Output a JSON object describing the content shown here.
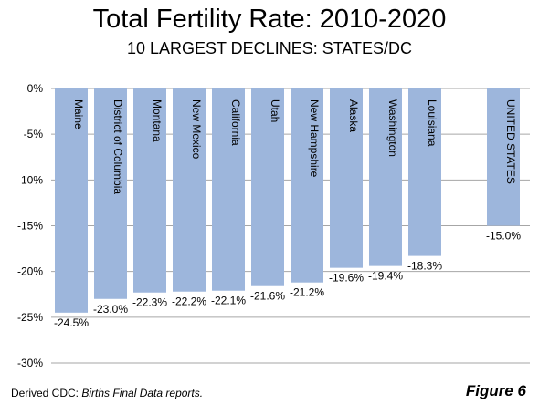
{
  "chart_data": {
    "type": "bar",
    "title": "Total Fertility Rate: 2010-2020",
    "subtitle": "10 LARGEST DECLINES: STATES/DC",
    "categories": [
      "Maine",
      "District of Columbia",
      "Montana",
      "New Mexico",
      "California",
      "Utah",
      "New Hampshire",
      "Alaska",
      "Washington",
      "Louisiana",
      "",
      "UNITED STATES"
    ],
    "values": [
      -24.5,
      -23.0,
      -22.3,
      -22.2,
      -22.1,
      -21.6,
      -21.2,
      -19.6,
      -19.4,
      -18.3,
      null,
      -15.0
    ],
    "data_labels": [
      "-24.5%",
      "-23.0%",
      "-22.3%",
      "-22.2%",
      "-22.1%",
      "-21.6%",
      "-21.2%",
      "-19.6%",
      "-19.4%",
      "-18.3%",
      "",
      "-15.0%"
    ],
    "yticks": [
      0,
      -5,
      -10,
      -15,
      -20,
      -25,
      -30
    ],
    "ytick_labels": [
      "0%",
      "-5%",
      "-10%",
      "-15%",
      "-20%",
      "-25%",
      "-30%"
    ],
    "ylim": [
      -30,
      0
    ],
    "grid": true,
    "bar_color": "#9db6dc"
  },
  "footer": {
    "source_prefix": "Derived  CDC: ",
    "source_italic": "Births Final Data reports.",
    "figure_label": "Figure 6"
  }
}
